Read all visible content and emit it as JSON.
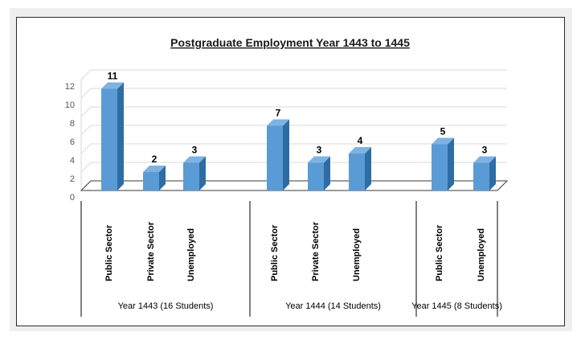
{
  "chart_data": {
    "type": "bar",
    "title": "Postgraduate Employment Year 1443 to 1445",
    "xlabel": "",
    "ylabel": "",
    "ylim": [
      0,
      12
    ],
    "yticks": [
      "0",
      "2",
      "4",
      "6",
      "8",
      "10",
      "12"
    ],
    "grid": true,
    "legend": "none",
    "bar_color": "#5b9bd5",
    "groups": [
      {
        "label": "Year 1443 (16 Students)",
        "categories": [
          "Public Sector",
          "Private Sector",
          "Unemployed"
        ],
        "values": [
          11,
          2,
          3
        ]
      },
      {
        "label": "Year 1444 (14 Students)",
        "categories": [
          "Public Sector",
          "Private Sector",
          "Unemployed"
        ],
        "values": [
          7,
          3,
          4
        ]
      },
      {
        "label": "Year 1445 (8 Students)",
        "categories": [
          "Public Sector",
          "Unemployed"
        ],
        "values": [
          5,
          3
        ]
      }
    ]
  }
}
